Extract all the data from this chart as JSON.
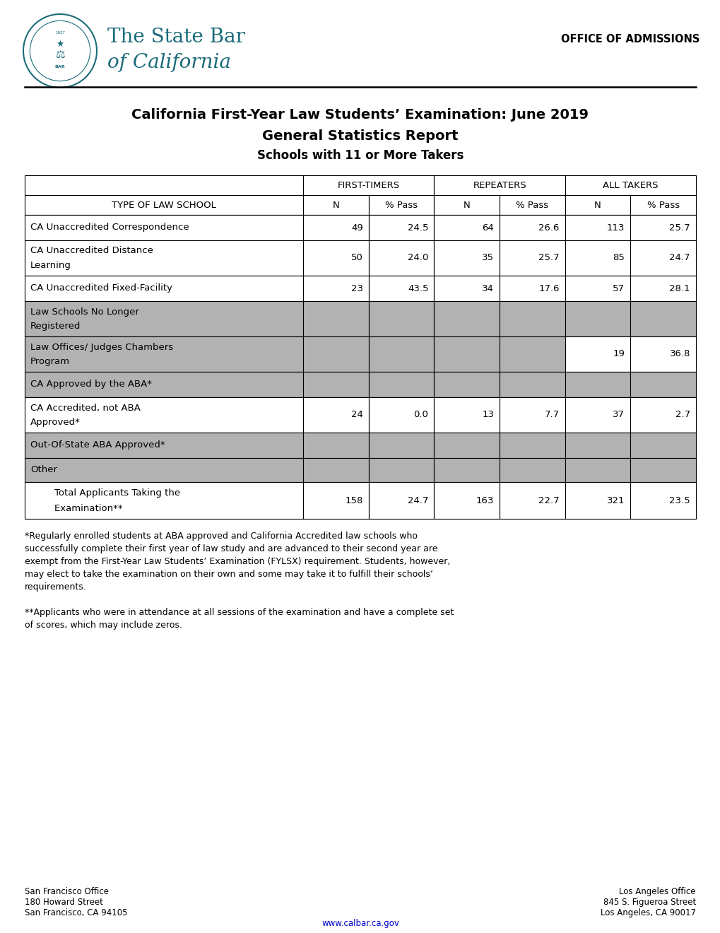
{
  "title_line1": "California First-Year Law Students’ Examination: June 2019",
  "title_line2": "General Statistics Report",
  "title_line3": "Schools with 11 or More Takers",
  "office_label": "OFFICE OF ADMISSIONS",
  "footnote1": "*Regularly enrolled students at ABA approved and California Accredited law schools who successfully complete their first year of law study and are advanced to their second year are exempt from the First-Year Law Students’ Examination (FYLSX) requirement. Students, however, may elect to take the examination on their own and some may take it to fulfill their schools’ requirements.",
  "footnote2": "**Applicants who were in attendance at all sessions of the examination and have a complete set of scores, which may include zeros.",
  "sf_office": "San Francisco Office\n180 Howard Street\nSan Francisco, CA 94105",
  "la_office": "Los Angeles Office\n845 S. Figueroa Street\nLos Angeles, CA 90017",
  "website": "www.calbar.ca.gov",
  "gray_color": "#b2b2b2",
  "teal_color": "#1a6b7a",
  "rows": [
    {
      "label1": "CA Unaccredited Correspondence",
      "label2": "",
      "ft_n": "49",
      "ft_p": "24.5",
      "rp_n": "64",
      "rp_p": "26.6",
      "at_n": "113",
      "at_p": "25.7",
      "gray": false,
      "partial_gray": false
    },
    {
      "label1": "CA Unaccredited Distance",
      "label2": "Learning",
      "ft_n": "50",
      "ft_p": "24.0",
      "rp_n": "35",
      "rp_p": "25.7",
      "at_n": "85",
      "at_p": "24.7",
      "gray": false,
      "partial_gray": false
    },
    {
      "label1": "CA Unaccredited Fixed-Facility",
      "label2": "",
      "ft_n": "23",
      "ft_p": "43.5",
      "rp_n": "34",
      "rp_p": "17.6",
      "at_n": "57",
      "at_p": "28.1",
      "gray": false,
      "partial_gray": false
    },
    {
      "label1": "Law Schools No Longer",
      "label2": "Registered",
      "ft_n": "",
      "ft_p": "",
      "rp_n": "",
      "rp_p": "",
      "at_n": "",
      "at_p": "",
      "gray": true,
      "partial_gray": false
    },
    {
      "label1": "Law Offices/ Judges Chambers",
      "label2": "Program",
      "ft_n": "",
      "ft_p": "",
      "rp_n": "",
      "rp_p": "",
      "at_n": "19",
      "at_p": "36.8",
      "gray": true,
      "partial_gray": true
    },
    {
      "label1": "CA Approved by the ABA*",
      "label2": "",
      "ft_n": "",
      "ft_p": "",
      "rp_n": "",
      "rp_p": "",
      "at_n": "",
      "at_p": "",
      "gray": true,
      "partial_gray": false
    },
    {
      "label1": "CA Accredited, not ABA",
      "label2": "Approved*",
      "ft_n": "24",
      "ft_p": "0.0",
      "rp_n": "13",
      "rp_p": "7.7",
      "at_n": "37",
      "at_p": "2.7",
      "gray": false,
      "partial_gray": false
    },
    {
      "label1": "Out-Of-State ABA Approved*",
      "label2": "",
      "ft_n": "",
      "ft_p": "",
      "rp_n": "",
      "rp_p": "",
      "at_n": "",
      "at_p": "",
      "gray": true,
      "partial_gray": false
    },
    {
      "label1": "Other",
      "label2": "",
      "ft_n": "",
      "ft_p": "",
      "rp_n": "",
      "rp_p": "",
      "at_n": "",
      "at_p": "",
      "gray": true,
      "partial_gray": false
    },
    {
      "label1": "        Total Applicants Taking the",
      "label2": "        Examination**",
      "ft_n": "158",
      "ft_p": "24.7",
      "rp_n": "163",
      "rp_p": "22.7",
      "at_n": "321",
      "at_p": "23.5",
      "gray": false,
      "partial_gray": false
    }
  ]
}
